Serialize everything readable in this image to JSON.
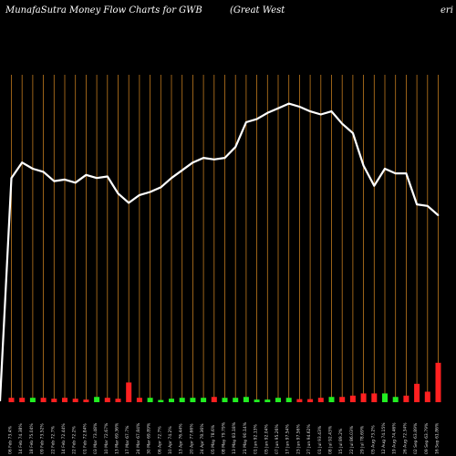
{
  "header": {
    "left_title": "MunafaSutra  Money Flow  Charts for GWB",
    "mid_title": "(Great West",
    "right_title": "eri"
  },
  "chart_data": {
    "type": "line",
    "title": "MunafaSutra  Money Flow  Charts for GWB",
    "subtitle": "(Great West",
    "xlabel": "",
    "ylabel": "",
    "grid": "vertical",
    "series_line": [
      null,
      72,
      77,
      75,
      74,
      71,
      71.5,
      70.5,
      73,
      72,
      72.5,
      67,
      64,
      66.5,
      67.5,
      69,
      72,
      74.5,
      77,
      78.5,
      78,
      78.5,
      82,
      90,
      91,
      93,
      94.5,
      96,
      95,
      93.5,
      92.5,
      93.5,
      89.5,
      86.5,
      76,
      69.5,
      75,
      73.5,
      73.5,
      63.5,
      63,
      60
    ],
    "volume_bars": [
      {
        "v": 1,
        "c": "red"
      },
      {
        "v": 1,
        "c": "red"
      },
      {
        "v": 1,
        "c": "green"
      },
      {
        "v": 1,
        "c": "red"
      },
      {
        "v": 0.8,
        "c": "red"
      },
      {
        "v": 1,
        "c": "red"
      },
      {
        "v": 0.8,
        "c": "red"
      },
      {
        "v": 0.6,
        "c": "red"
      },
      {
        "v": 1.2,
        "c": "green"
      },
      {
        "v": 1,
        "c": "red"
      },
      {
        "v": 0.8,
        "c": "red"
      },
      {
        "v": 4.5,
        "c": "red"
      },
      {
        "v": 1,
        "c": "red"
      },
      {
        "v": 1,
        "c": "green"
      },
      {
        "v": 0.5,
        "c": "green"
      },
      {
        "v": 0.8,
        "c": "green"
      },
      {
        "v": 1,
        "c": "green"
      },
      {
        "v": 1,
        "c": "green"
      },
      {
        "v": 1,
        "c": "green"
      },
      {
        "v": 1.2,
        "c": "red"
      },
      {
        "v": 1,
        "c": "green"
      },
      {
        "v": 1,
        "c": "green"
      },
      {
        "v": 1.2,
        "c": "green"
      },
      {
        "v": 0.6,
        "c": "green"
      },
      {
        "v": 0.6,
        "c": "green"
      },
      {
        "v": 1,
        "c": "green"
      },
      {
        "v": 1,
        "c": "green"
      },
      {
        "v": 0.7,
        "c": "red"
      },
      {
        "v": 0.7,
        "c": "red"
      },
      {
        "v": 1,
        "c": "red"
      },
      {
        "v": 1.2,
        "c": "green"
      },
      {
        "v": 1.2,
        "c": "red"
      },
      {
        "v": 1.5,
        "c": "red"
      },
      {
        "v": 2,
        "c": "red"
      },
      {
        "v": 2,
        "c": "red"
      },
      {
        "v": 2,
        "c": "green"
      },
      {
        "v": 1.2,
        "c": "green"
      },
      {
        "v": 1.5,
        "c": "red"
      },
      {
        "v": 4.2,
        "c": "red"
      },
      {
        "v": 2.4,
        "c": "red"
      },
      {
        "v": 9,
        "c": "red"
      }
    ],
    "x_labels": [
      "06 Feb 73.4%",
      "14 Feb 74.38%",
      "18 Feb 75.04%",
      "09 Feb 73.52%",
      "22 Feb 72.7%",
      "14 Feb 72.44%",
      "22 Feb 72.2%",
      "01 Feb 72.84%",
      "03 Mar 73.48%",
      "10 Mar 72.67%",
      "13 Mar 69.36%",
      "17 Mar 67.7%",
      "24 Mar 67.84%",
      "30 Mar 69.89%",
      "06 Apr 72.7%",
      "10 Apr 74.2%",
      "13 Apr 76.44%",
      "20 Apr 77.66%",
      "24 Apr 78.36%",
      "05 May 78.6%",
      "08 May 79.79%",
      "13 May 83.18%",
      "21 May 90.14%",
      "01 Jun 92.13%",
      "05 Jun 92.04%",
      "07 Jun 95.26%",
      "17 Jun 97.54%",
      "23 Jun 97.56%",
      "27 Jun 94.62%",
      "01 Jul 93.43%",
      "08 Jul 92.43%",
      "15 Jul 89.2%",
      "22 Jul 86.03%",
      "29 Jul 78.69%",
      "05 Aug 73.2%",
      "12 Aug 74.15%",
      "19 Aug 74.46%",
      "26 Aug 72.34%",
      "02 Sep 63.89%",
      "09 Sep 63.79%",
      "16 Sep 61.86%"
    ]
  }
}
